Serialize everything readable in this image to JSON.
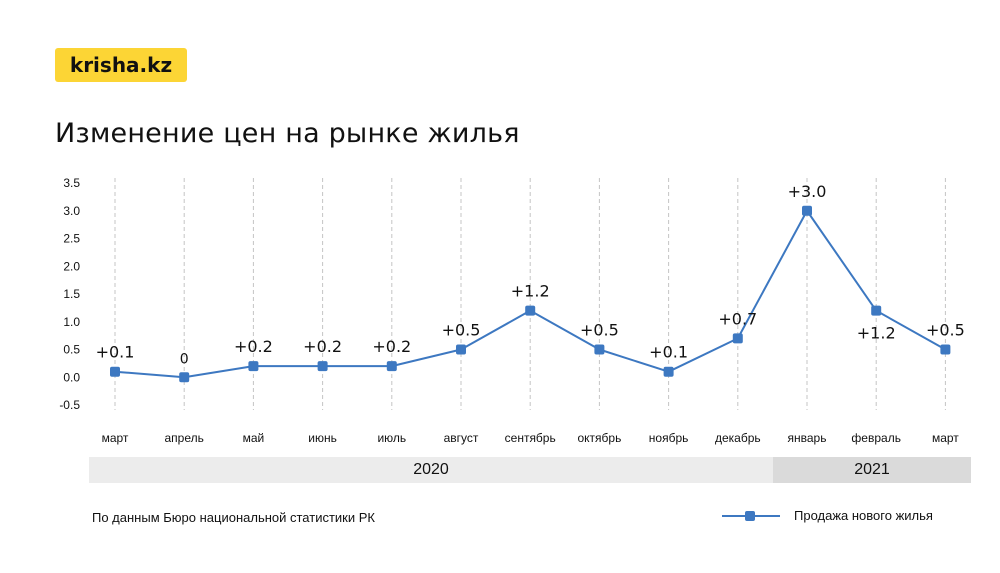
{
  "brand": {
    "logo_text": "krisha.kz",
    "accent": "#fcd535"
  },
  "page": {
    "title": "Изменение цен на рынке жилья"
  },
  "years": [
    {
      "label": "2020"
    },
    {
      "label": "2021"
    }
  ],
  "footer": {
    "source": "По данным Бюро национальной статистики РК",
    "legend_label": "Продажа нового жилья"
  },
  "chart_data": {
    "type": "line",
    "title": "Изменение цен на рынке жилья",
    "categories": [
      "март",
      "апрель",
      "май",
      "июнь",
      "июль",
      "август",
      "сентябрь",
      "октябрь",
      "ноябрь",
      "декабрь",
      "январь",
      "февраль",
      "март"
    ],
    "series": [
      {
        "name": "Продажа нового жилья",
        "values": [
          0.1,
          0,
          0.2,
          0.2,
          0.2,
          0.5,
          1.2,
          0.5,
          0.1,
          0.7,
          3.0,
          1.2,
          0.5
        ],
        "data_labels": [
          "+0.1",
          "0",
          "+0.2",
          "+0.2",
          "+0.2",
          "+0.5",
          "+1.2",
          "+0.5",
          "+0.1",
          "+0.7",
          "+3.0",
          "+1.2",
          "+0.5"
        ],
        "color": "#3d78c1"
      }
    ],
    "y_ticks": [
      "3.5",
      "3.0",
      "2.5",
      "2.0",
      "1.5",
      "1.0",
      "0.5",
      "0.0",
      "-0.5"
    ],
    "ylim": [
      -0.5,
      3.5
    ],
    "grid": "vertical dashed",
    "legend_position": "bottom-right"
  }
}
